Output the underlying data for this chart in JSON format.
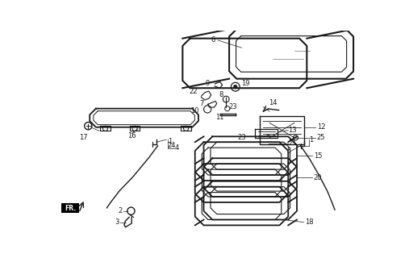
{
  "bg_color": "#ffffff",
  "line_color": "#1a1a1a",
  "figsize": [
    5.07,
    3.2
  ],
  "dpi": 100
}
